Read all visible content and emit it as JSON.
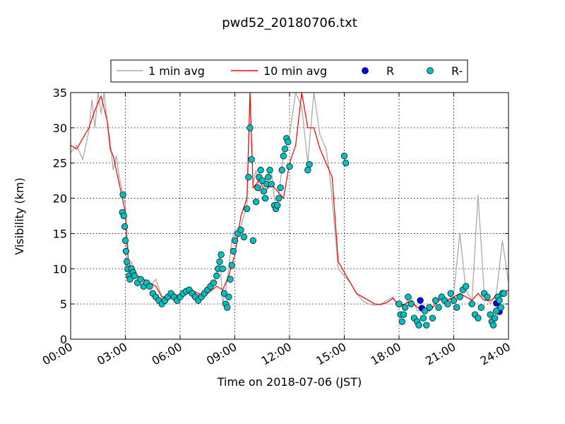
{
  "chart_data": {
    "type": "line",
    "title": "pwd52_20180706.txt",
    "xlabel": "Time on 2018-07-06 (JST)",
    "ylabel": "Visibility (km)",
    "xlim": [
      "00:00",
      "24:00"
    ],
    "ylim": [
      0,
      35
    ],
    "x_ticks": [
      "00:00",
      "03:00",
      "06:00",
      "09:00",
      "12:00",
      "15:00",
      "18:00",
      "21:00",
      "24:00"
    ],
    "y_ticks": [
      0,
      5,
      10,
      15,
      20,
      25,
      30,
      35
    ],
    "grid": true,
    "legend_position": "top-center",
    "series": [
      {
        "name": "1 min avg",
        "kind": "line",
        "color": "#aaaaaa",
        "x": [
          "00:00",
          "00:20",
          "00:40",
          "01:00",
          "01:10",
          "01:20",
          "01:30",
          "01:40",
          "01:50",
          "02:00",
          "02:10",
          "02:20",
          "02:30",
          "02:40",
          "02:50",
          "03:00",
          "03:05",
          "03:10",
          "03:20",
          "03:40",
          "04:00",
          "04:20",
          "04:40",
          "05:00",
          "05:20",
          "05:40",
          "06:00",
          "06:20",
          "06:40",
          "07:00",
          "07:20",
          "07:40",
          "08:00",
          "08:10",
          "08:20",
          "08:30",
          "08:40",
          "08:50",
          "09:00",
          "09:20",
          "09:40",
          "09:50",
          "10:00",
          "10:10",
          "10:20",
          "10:40",
          "11:00",
          "11:10",
          "11:20",
          "11:40",
          "12:00",
          "12:20",
          "12:40",
          "13:00",
          "13:20",
          "13:40",
          "14:00",
          "14:10",
          "14:20",
          "14:40",
          "15:00",
          "15:20",
          "15:40",
          "16:00",
          "16:20",
          "16:40",
          "17:00",
          "17:20",
          "17:40",
          "18:00",
          "18:20",
          "18:40",
          "19:00",
          "19:20",
          "19:40",
          "20:00",
          "20:20",
          "20:40",
          "21:00",
          "21:20",
          "21:40",
          "22:00",
          "22:20",
          "22:40",
          "23:00",
          "23:20",
          "23:40",
          "24:00"
        ],
        "y": [
          26.5,
          27.5,
          25.5,
          29.5,
          34.0,
          30.0,
          35.0,
          32.0,
          35.0,
          31.0,
          28.0,
          24.0,
          26.0,
          23.0,
          21.0,
          19.0,
          10.0,
          9.5,
          11.0,
          9.0,
          8.5,
          7.5,
          8.5,
          6.0,
          6.0,
          6.5,
          6.0,
          6.5,
          7.0,
          6.5,
          6.0,
          7.0,
          9.0,
          12.5,
          5.0,
          7.0,
          10.0,
          14.0,
          15.5,
          16.0,
          19.0,
          35.0,
          22.0,
          24.0,
          21.0,
          23.0,
          24.0,
          20.0,
          19.0,
          26.0,
          29.0,
          35.0,
          33.0,
          25.0,
          35.0,
          29.0,
          27.0,
          24.0,
          20.0,
          10.0,
          9.0,
          8.0,
          6.5,
          5.5,
          5.0,
          4.8,
          5.0,
          5.5,
          6.0,
          4.5,
          5.0,
          6.0,
          4.0,
          4.5,
          4.0,
          5.0,
          6.5,
          5.5,
          6.5,
          15.0,
          7.0,
          5.5,
          20.5,
          6.5,
          5.0,
          6.5,
          14.0,
          8.0
        ]
      },
      {
        "name": "10 min avg",
        "kind": "line",
        "color": "#ff0000",
        "x": [
          "00:00",
          "00:20",
          "00:40",
          "01:00",
          "01:20",
          "01:40",
          "02:00",
          "02:10",
          "02:20",
          "02:30",
          "02:40",
          "02:50",
          "03:00",
          "03:10",
          "03:20",
          "03:40",
          "04:00",
          "04:20",
          "04:40",
          "05:00",
          "05:20",
          "05:40",
          "06:00",
          "06:20",
          "06:40",
          "07:00",
          "07:20",
          "07:40",
          "08:00",
          "08:20",
          "08:40",
          "09:00",
          "09:20",
          "09:40",
          "09:50",
          "10:00",
          "10:20",
          "10:40",
          "11:00",
          "11:20",
          "11:40",
          "12:00",
          "12:20",
          "12:40",
          "13:00",
          "13:20",
          "13:40",
          "14:00",
          "14:20",
          "14:40",
          "15:00",
          "15:20",
          "15:40",
          "16:00",
          "16:20",
          "16:40",
          "17:00",
          "17:20",
          "17:40",
          "18:00",
          "18:20",
          "18:40",
          "19:00",
          "19:20",
          "19:40",
          "20:00",
          "20:20",
          "20:40",
          "21:00",
          "21:20",
          "21:40",
          "22:00",
          "22:20",
          "22:40",
          "23:00",
          "23:20",
          "23:40",
          "24:00"
        ],
        "y": [
          27.5,
          27.0,
          28.5,
          30.0,
          32.5,
          34.5,
          31.0,
          27.0,
          26.0,
          24.0,
          22.0,
          20.0,
          18.0,
          11.0,
          10.0,
          9.0,
          8.5,
          8.0,
          7.5,
          6.0,
          6.0,
          6.2,
          6.0,
          6.5,
          6.8,
          6.5,
          6.2,
          6.8,
          7.5,
          7.0,
          9.0,
          12.0,
          17.5,
          20.0,
          35.0,
          21.5,
          22.5,
          21.0,
          22.0,
          21.0,
          20.0,
          25.0,
          27.5,
          35.0,
          30.0,
          30.0,
          27.0,
          25.0,
          23.0,
          11.0,
          9.5,
          8.0,
          6.5,
          6.0,
          5.5,
          5.0,
          4.9,
          5.2,
          5.8,
          4.8,
          5.0,
          5.5,
          4.5,
          4.5,
          4.0,
          5.0,
          5.8,
          5.5,
          6.0,
          6.5,
          6.0,
          5.5,
          6.5,
          5.5,
          5.5,
          6.0,
          6.5,
          7.0
        ]
      },
      {
        "name": "R",
        "kind": "scatter",
        "color": "#0000ff",
        "x": [
          "19:10",
          "19:15",
          "23:20",
          "23:25",
          "23:30"
        ],
        "y": [
          5.5,
          4.4,
          5.1,
          4.1,
          3.9
        ]
      },
      {
        "name": "R-",
        "kind": "scatter",
        "color": "#00bfbf",
        "x": [
          "02:50",
          "02:52",
          "02:55",
          "02:58",
          "03:00",
          "03:02",
          "03:05",
          "03:08",
          "03:12",
          "03:15",
          "03:20",
          "03:25",
          "03:30",
          "03:40",
          "03:50",
          "04:00",
          "04:10",
          "04:20",
          "04:30",
          "04:40",
          "04:50",
          "05:00",
          "05:10",
          "05:20",
          "05:30",
          "05:40",
          "05:50",
          "06:00",
          "06:10",
          "06:20",
          "06:30",
          "06:40",
          "06:50",
          "07:00",
          "07:10",
          "07:20",
          "07:30",
          "07:40",
          "07:50",
          "08:00",
          "08:05",
          "08:10",
          "08:15",
          "08:20",
          "08:25",
          "08:30",
          "08:35",
          "08:40",
          "08:45",
          "08:50",
          "08:55",
          "09:00",
          "09:10",
          "09:20",
          "09:30",
          "09:40",
          "09:45",
          "09:50",
          "09:55",
          "10:00",
          "10:10",
          "10:15",
          "10:20",
          "10:25",
          "10:30",
          "10:35",
          "10:40",
          "10:45",
          "10:50",
          "10:55",
          "11:00",
          "11:10",
          "11:15",
          "11:20",
          "11:25",
          "11:30",
          "11:35",
          "11:40",
          "11:45",
          "11:50",
          "11:55",
          "12:00",
          "13:00",
          "13:05",
          "15:00",
          "15:05",
          "18:00",
          "18:05",
          "18:10",
          "18:15",
          "18:20",
          "18:30",
          "18:40",
          "18:50",
          "19:00",
          "19:05",
          "19:20",
          "19:25",
          "19:30",
          "19:40",
          "19:50",
          "20:00",
          "20:10",
          "20:20",
          "20:30",
          "20:40",
          "20:50",
          "21:00",
          "21:10",
          "21:20",
          "21:30",
          "21:40",
          "22:00",
          "22:10",
          "22:20",
          "22:30",
          "22:40",
          "22:50",
          "23:00",
          "23:05",
          "23:10",
          "23:15",
          "23:20",
          "23:25",
          "23:30",
          "23:35",
          "23:40",
          "23:45"
        ],
        "y": [
          18.0,
          20.5,
          17.5,
          16.0,
          14.0,
          12.5,
          11.0,
          10.0,
          9.0,
          8.5,
          10.0,
          9.5,
          9.0,
          8.0,
          8.5,
          7.5,
          8.0,
          7.5,
          6.5,
          6.0,
          5.5,
          5.0,
          5.5,
          6.0,
          6.5,
          6.0,
          5.5,
          6.0,
          6.5,
          6.8,
          7.0,
          6.5,
          6.0,
          5.5,
          6.0,
          6.5,
          7.0,
          7.5,
          8.0,
          9.0,
          10.0,
          11.0,
          12.0,
          10.0,
          6.5,
          5.0,
          4.5,
          6.0,
          8.5,
          10.5,
          12.5,
          14.0,
          15.0,
          15.5,
          14.5,
          18.5,
          23.0,
          30.0,
          25.5,
          14.0,
          19.5,
          21.5,
          23.0,
          24.0,
          22.5,
          21.0,
          20.0,
          22.0,
          23.0,
          24.0,
          22.0,
          19.0,
          18.5,
          19.0,
          20.0,
          21.5,
          24.0,
          26.0,
          27.0,
          28.5,
          28.0,
          24.5,
          24.0,
          24.8,
          26.0,
          25.0,
          5.0,
          3.5,
          2.5,
          3.5,
          4.5,
          6.0,
          5.0,
          3.0,
          2.5,
          2.0,
          3.0,
          4.0,
          2.0,
          4.5,
          3.0,
          5.5,
          4.5,
          6.0,
          5.5,
          5.0,
          6.5,
          5.5,
          4.5,
          6.0,
          7.0,
          7.5,
          5.0,
          3.5,
          3.0,
          4.5,
          6.5,
          6.0,
          3.5,
          2.5,
          2.0,
          3.0,
          4.0,
          6.0,
          5.5,
          4.5,
          6.5,
          6.5
        ]
      }
    ]
  }
}
